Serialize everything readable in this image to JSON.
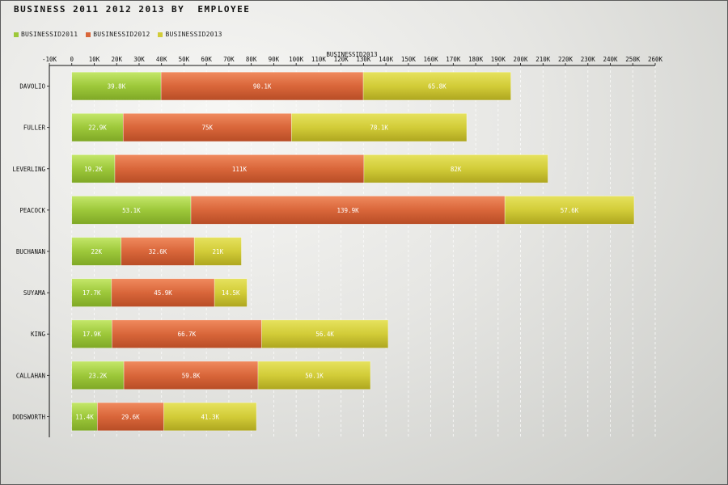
{
  "chart_data": {
    "type": "bar",
    "orientation": "horizontal",
    "stacked": true,
    "title": "BUSINESS 2011 2012 2013 BY  EMPLOYEE",
    "xlabel": "BUSINESSID2013",
    "ylabel": "",
    "xlim": [
      -10000,
      260000
    ],
    "x_ticks": [
      "-10K",
      "0",
      "10K",
      "20K",
      "30K",
      "40K",
      "50K",
      "60K",
      "70K",
      "80K",
      "90K",
      "100K",
      "110K",
      "120K",
      "130K",
      "140K",
      "150K",
      "160K",
      "170K",
      "180K",
      "190K",
      "200K",
      "210K",
      "220K",
      "230K",
      "240K",
      "250K",
      "260K"
    ],
    "grid": true,
    "legend_position": "top-left",
    "categories": [
      "DAVOLIO",
      "FULLER",
      "LEVERLING",
      "PEACOCK",
      "BUCHANAN",
      "SUYAMA",
      "KING",
      "CALLAHAN",
      "DODSWORTH"
    ],
    "series": [
      {
        "name": "BUSINESSID2011",
        "color": "#9dc83a",
        "values": [
          39800,
          22900,
          19200,
          53100,
          22000,
          17700,
          17900,
          23200,
          11400
        ],
        "labels": [
          "39.8K",
          "22.9K",
          "19.2K",
          "53.1K",
          "22K",
          "17.7K",
          "17.9K",
          "23.2K",
          "11.4K"
        ]
      },
      {
        "name": "BUSINESSID2012",
        "color": "#d9663a",
        "values": [
          90100,
          75000,
          111000,
          139900,
          32600,
          45900,
          66700,
          59800,
          29600
        ],
        "labels": [
          "90.1K",
          "75K",
          "111K",
          "139.9K",
          "32.6K",
          "45.9K",
          "66.7K",
          "59.8K",
          "29.6K"
        ]
      },
      {
        "name": "BUSINESSID2013",
        "color": "#d2cc38",
        "values": [
          65800,
          78100,
          82000,
          57600,
          21000,
          14500,
          56400,
          50100,
          41300
        ],
        "labels": [
          "65.8K",
          "78.1K",
          "82K",
          "57.6K",
          "21K",
          "14.5K",
          "56.4K",
          "50.1K",
          "41.3K"
        ]
      }
    ]
  }
}
